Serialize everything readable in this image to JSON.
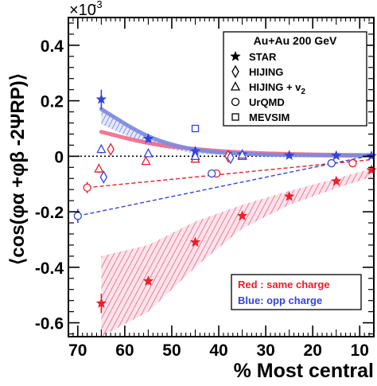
{
  "chart_data": {
    "type": "scatter",
    "x_label": "% Most central",
    "y_label": "⟨cos(φα +φβ -2ΨRP)⟩",
    "y_multiplier_label": "×10",
    "y_multiplier_exponent": "-3",
    "x_range": [
      72,
      7
    ],
    "x_reversed": true,
    "y_range": [
      -0.65,
      0.5
    ],
    "x_ticks": [
      70,
      60,
      50,
      40,
      30,
      20,
      10
    ],
    "y_ticks": [
      0.4,
      0.2,
      0,
      -0.2,
      -0.4,
      -0.6
    ],
    "y_tick_labels": [
      "0.4",
      "0.2",
      "0",
      "-0.2",
      "-0.4",
      "-0.6"
    ],
    "grid": false,
    "zero_line": "dotted",
    "legend": {
      "position": "top-right",
      "title": "Au+Au 200 GeV",
      "entries": [
        {
          "symbol": "star",
          "label": "STAR"
        },
        {
          "symbol": "diamond",
          "label": "HIJING"
        },
        {
          "symbol": "triangle",
          "label": "HIJING + v",
          "subscript": "2"
        },
        {
          "symbol": "circle",
          "label": "UrQMD"
        },
        {
          "symbol": "square",
          "label": "MEVSIM"
        }
      ]
    },
    "color_note": {
      "position": "bottom-right",
      "red_text": "Red : same charge",
      "blue_text": "Blue:  opp charge"
    },
    "colors": {
      "same_charge": "#e8202a",
      "opp_charge": "#3344dd",
      "same_band": "#f06a88",
      "opp_band": "#7b8ae0"
    },
    "series": [
      {
        "name": "STAR",
        "group": "same_charge",
        "marker": "star",
        "points": [
          [
            65,
            -0.53
          ],
          [
            55,
            -0.45
          ],
          [
            45,
            -0.31
          ],
          [
            35,
            -0.215
          ],
          [
            25,
            -0.145
          ],
          [
            15,
            -0.09
          ],
          [
            7.5,
            -0.05
          ]
        ],
        "errors": [
          0.035,
          0.012,
          0.008,
          0.007,
          0.006,
          0.006,
          0.008
        ]
      },
      {
        "name": "STAR",
        "group": "opp_charge",
        "marker": "star",
        "points": [
          [
            65,
            0.205
          ],
          [
            55,
            0.063
          ],
          [
            45,
            0.018
          ],
          [
            35,
            0.007
          ],
          [
            25,
            0.003
          ],
          [
            15,
            0.002
          ],
          [
            7.5,
            0.001
          ]
        ],
        "errors": [
          0.035,
          0.012,
          0.008,
          0.006,
          0.005,
          0.005,
          0.006
        ]
      },
      {
        "name": "HIJING",
        "group": "same_charge",
        "marker": "diamond",
        "points": [
          [
            63,
            0.025
          ],
          [
            38,
            0.0
          ]
        ],
        "errors": [
          0.02,
          0.008
        ]
      },
      {
        "name": "HIJING",
        "group": "opp_charge",
        "marker": "diamond",
        "points": [
          [
            64.5,
            -0.075
          ],
          [
            37.5,
            -0.005
          ]
        ],
        "errors": [
          0.02,
          0.008
        ]
      },
      {
        "name": "HIJING + v2",
        "group": "same_charge",
        "marker": "triangle",
        "points": [
          [
            65.5,
            -0.045
          ],
          [
            55.5,
            -0.018
          ],
          [
            45,
            -0.01
          ],
          [
            35,
            0.0
          ]
        ],
        "errors": [
          0.015,
          0.008,
          0.006,
          0.005
        ]
      },
      {
        "name": "HIJING + v2",
        "group": "opp_charge",
        "marker": "triangle",
        "points": [
          [
            65,
            0.025
          ],
          [
            55,
            0.01
          ],
          [
            45,
            0.0
          ],
          [
            35,
            0.005
          ]
        ],
        "errors": [
          0.015,
          0.008,
          0.006,
          0.005
        ]
      },
      {
        "name": "UrQMD",
        "group": "same_charge",
        "marker": "circle",
        "points": [
          [
            68,
            -0.113
          ],
          [
            40.5,
            -0.062
          ],
          [
            11.5,
            -0.025
          ]
        ],
        "errors": [
          0.02,
          0.006,
          0.006
        ]
      },
      {
        "name": "UrQMD",
        "group": "opp_charge",
        "marker": "circle",
        "points": [
          [
            70,
            -0.215
          ],
          [
            41.5,
            -0.062
          ],
          [
            16,
            -0.025
          ]
        ],
        "errors": [
          0.025,
          0.006,
          0.006
        ]
      },
      {
        "name": "MEVSIM",
        "group": "opp_charge",
        "marker": "square",
        "points": [
          [
            45,
            0.1
          ]
        ],
        "errors": [
          0.0
        ]
      }
    ],
    "dashed_fits": [
      {
        "group": "same_charge",
        "from": [
          68,
          -0.113
        ],
        "to": [
          7.5,
          -0.012
        ]
      },
      {
        "group": "opp_charge",
        "from": [
          70,
          -0.215
        ],
        "to": [
          7.5,
          0.003
        ]
      }
    ],
    "bands": [
      {
        "group": "same_charge",
        "x": [
          65,
          55,
          45,
          35,
          25,
          15,
          7.5
        ],
        "lower": [
          -0.65,
          -0.56,
          -0.4,
          -0.26,
          -0.175,
          -0.115,
          -0.075
        ],
        "upper": [
          -0.36,
          -0.32,
          -0.235,
          -0.175,
          -0.125,
          -0.08,
          -0.045
        ]
      },
      {
        "group": "opp_charge",
        "x": [
          65,
          55,
          45,
          35,
          25,
          15,
          7.5
        ],
        "lower": [
          0.115,
          0.04,
          0.01,
          0.002,
          0.0,
          -0.002,
          -0.003
        ],
        "upper": [
          0.17,
          0.075,
          0.025,
          0.012,
          0.006,
          0.004,
          0.004
        ]
      }
    ],
    "theory_curves": [
      {
        "group": "same_charge",
        "x": [
          65,
          55,
          45,
          35,
          25,
          15,
          7.5
        ],
        "y": [
          0.088,
          0.045,
          0.025,
          0.013,
          0.008,
          0.005,
          0.004
        ]
      },
      {
        "group": "opp_charge",
        "x": [
          65,
          55,
          45,
          35,
          25,
          15,
          7.5
        ],
        "y": [
          0.17,
          0.065,
          0.02,
          0.008,
          0.004,
          0.003,
          0.002
        ]
      }
    ]
  }
}
